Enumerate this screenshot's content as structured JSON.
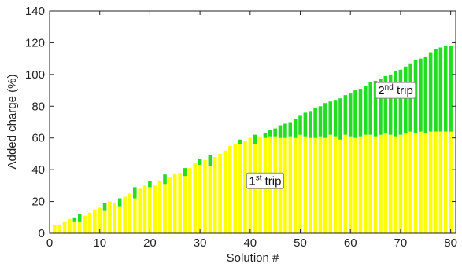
{
  "chart_data": {
    "type": "bar",
    "stacked": true,
    "xlabel": "Solution #",
    "ylabel": "Added charge (%)",
    "xlim": [
      0,
      81
    ],
    "ylim": [
      0,
      140
    ],
    "xticks": [
      0,
      10,
      20,
      30,
      40,
      50,
      60,
      70,
      80
    ],
    "yticks": [
      0,
      20,
      40,
      60,
      80,
      100,
      120,
      140
    ],
    "grid": false,
    "legend": "none",
    "colors": {
      "first_trip": "#ffff00",
      "second_trip": "#22dd22"
    },
    "annotations": [
      {
        "base": "2",
        "sup": "nd",
        "text": "trip",
        "x": 69,
        "y": 90
      },
      {
        "base": "1",
        "sup": "st",
        "text": "trip",
        "x": 43,
        "y": 33
      }
    ],
    "x": [
      1,
      2,
      3,
      4,
      5,
      6,
      7,
      8,
      9,
      10,
      11,
      12,
      13,
      14,
      15,
      16,
      17,
      18,
      19,
      20,
      21,
      22,
      23,
      24,
      25,
      26,
      27,
      28,
      29,
      30,
      31,
      32,
      33,
      34,
      35,
      36,
      37,
      38,
      39,
      40,
      41,
      42,
      43,
      44,
      45,
      46,
      47,
      48,
      49,
      50,
      51,
      52,
      53,
      54,
      55,
      56,
      57,
      58,
      59,
      60,
      61,
      62,
      63,
      64,
      65,
      66,
      67,
      68,
      69,
      70,
      71,
      72,
      73,
      74,
      75,
      76,
      77,
      78,
      79,
      80
    ],
    "series": [
      {
        "name": "1st trip",
        "values": [
          5,
          5,
          7,
          9,
          7,
          7,
          11,
          13,
          15,
          16,
          14,
          20,
          19,
          17,
          23,
          25,
          22,
          28,
          30,
          29,
          30,
          33,
          31,
          35,
          37,
          38,
          36,
          41,
          44,
          43,
          46,
          42,
          48,
          50,
          52,
          55,
          56,
          56,
          58,
          60,
          56,
          61,
          60,
          61,
          61,
          60,
          60,
          61,
          60,
          62,
          61,
          60,
          60,
          61,
          60,
          62,
          61,
          59,
          62,
          61,
          60,
          61,
          62,
          62,
          61,
          62,
          63,
          62,
          61,
          62,
          63,
          64,
          63,
          64,
          63,
          64,
          64,
          64,
          64,
          64
        ]
      },
      {
        "name": "2nd trip",
        "values": [
          0,
          0,
          0,
          0,
          3,
          5,
          0,
          0,
          0,
          0,
          5,
          0,
          0,
          5,
          0,
          0,
          7,
          0,
          0,
          4,
          0,
          0,
          6,
          0,
          0,
          0,
          5,
          0,
          0,
          4,
          0,
          7,
          0,
          0,
          0,
          0,
          0,
          3,
          0,
          0,
          6,
          0,
          3,
          4,
          5,
          8,
          9,
          9,
          12,
          12,
          15,
          17,
          19,
          19,
          22,
          21,
          23,
          26,
          25,
          27,
          30,
          30,
          31,
          33,
          35,
          35,
          36,
          38,
          41,
          41,
          42,
          43,
          46,
          46,
          48,
          50,
          52,
          53,
          54,
          54
        ]
      }
    ]
  }
}
